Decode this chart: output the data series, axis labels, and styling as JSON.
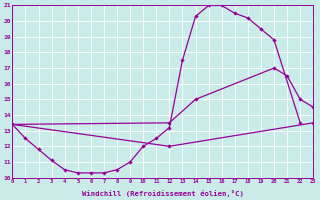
{
  "xlabel": "Windchill (Refroidissement éolien,°C)",
  "bg_color": "#c9ece9",
  "line_color": "#990099",
  "grid_color": "#ffffff",
  "xmin": 0,
  "xmax": 23,
  "ymin": 10,
  "ymax": 21,
  "line1": {
    "x": [
      0,
      1,
      2,
      3,
      4,
      5,
      6,
      7,
      8,
      9,
      10,
      11,
      12,
      13,
      14,
      15,
      16,
      17,
      18,
      19,
      20,
      21,
      22,
      23
    ],
    "y": [
      13.4,
      12.5,
      11.8,
      11.1,
      10.5,
      10.3,
      10.3,
      10.3,
      10.5,
      11.0,
      12.0,
      12.5,
      13.2,
      17.5,
      20.3,
      21.0,
      21.0,
      20.5,
      20.2,
      19.5,
      18.8,
      null,
      null,
      13.5
    ]
  },
  "line2": {
    "x": [
      0,
      1,
      2,
      3,
      4,
      5,
      6,
      7,
      8,
      9,
      10,
      11,
      12,
      13,
      14,
      15,
      16,
      17,
      18,
      19,
      20,
      21,
      22,
      23
    ],
    "y": [
      13.4,
      null,
      null,
      null,
      null,
      null,
      null,
      null,
      null,
      null,
      null,
      null,
      13.5,
      null,
      15.0,
      null,
      null,
      null,
      null,
      null,
      17.0,
      16.5,
      15.0,
      14.5
    ]
  },
  "line3": {
    "x": [
      0,
      1,
      2,
      3,
      4,
      5,
      6,
      7,
      8,
      9,
      10,
      11,
      12,
      13,
      14,
      15,
      16,
      17,
      18,
      19,
      20,
      21,
      22,
      23
    ],
    "y": [
      13.4,
      null,
      null,
      null,
      null,
      null,
      null,
      null,
      null,
      null,
      null,
      null,
      12.0,
      null,
      null,
      null,
      null,
      null,
      null,
      null,
      null,
      null,
      null,
      13.5
    ]
  }
}
